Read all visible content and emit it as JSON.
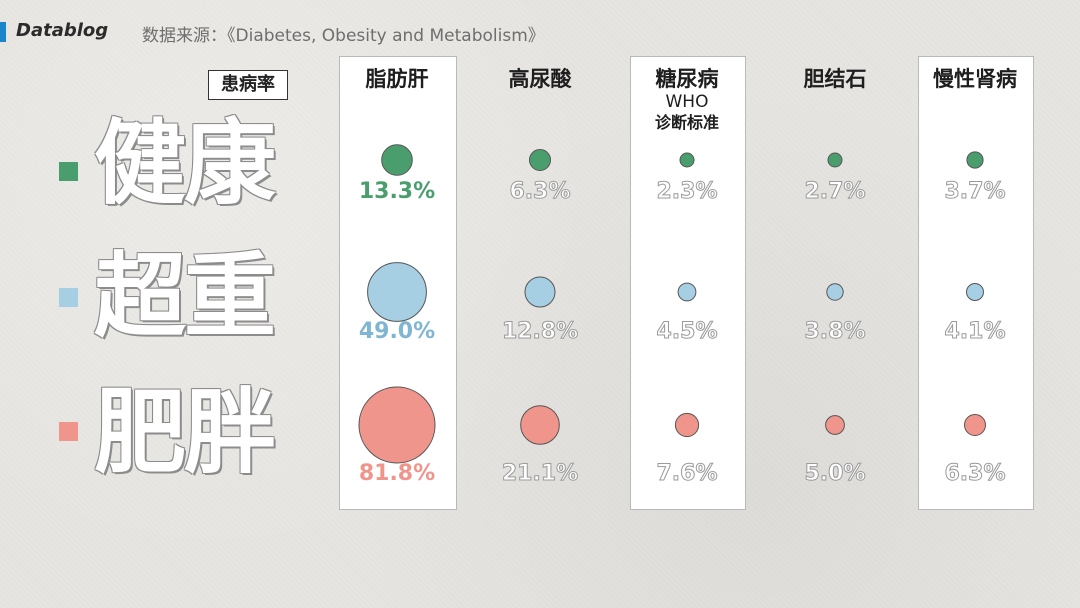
{
  "header": {
    "brand": "Datablog",
    "source": "数据来源：《Diabetes, Obesity and Metabolism》"
  },
  "rate_label": "患病率",
  "columns": [
    {
      "name": "脂肪肝",
      "sub": "",
      "sub2": ""
    },
    {
      "name": "高尿酸",
      "sub": "",
      "sub2": ""
    },
    {
      "name": "糖尿病",
      "sub": "WHO",
      "sub2": "诊断标准"
    },
    {
      "name": "胆结石",
      "sub": "",
      "sub2": ""
    },
    {
      "name": "慢性肾病",
      "sub": "",
      "sub2": ""
    }
  ],
  "rows": [
    {
      "label": "健康",
      "color": "#4a9e6e"
    },
    {
      "label": "超重",
      "color": "#a6cfe4"
    },
    {
      "label": "肥胖",
      "color": "#f0958c"
    }
  ],
  "colors": {
    "healthy": "#4a9e6e",
    "overweight": "#a6cfe4",
    "obese": "#f0958c",
    "muted_text": "#9a9a9a",
    "highlight_panel": "#ffffff"
  },
  "chart_data": {
    "type": "bubble-grid",
    "unit": "%",
    "categories": [
      "脂肪肝",
      "高尿酸",
      "糖尿病",
      "胆结石",
      "慢性肾病"
    ],
    "series": [
      {
        "name": "健康",
        "values": [
          13.3,
          6.3,
          2.3,
          2.7,
          3.7
        ],
        "labels": [
          "13.3%",
          "6.3%",
          "2.3%",
          "2.7%",
          "3.7%"
        ]
      },
      {
        "name": "超重",
        "values": [
          49.0,
          12.8,
          4.5,
          3.8,
          4.1
        ],
        "labels": [
          "49.0%",
          "12.8%",
          "4.5%",
          "3.8%",
          "4.1%"
        ]
      },
      {
        "name": "肥胖",
        "values": [
          81.8,
          21.1,
          7.6,
          5.0,
          6.3
        ],
        "labels": [
          "81.8%",
          "21.1%",
          "7.6%",
          "5.0%",
          "6.3%"
        ]
      }
    ],
    "highlighted_column": 0
  }
}
